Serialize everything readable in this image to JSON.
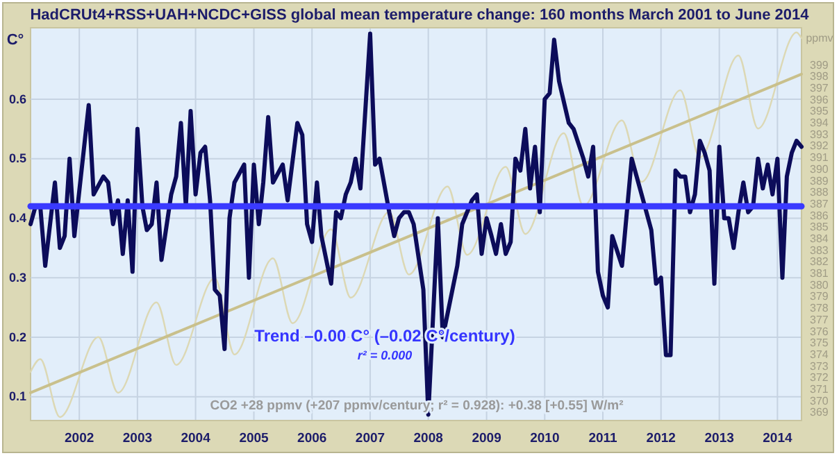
{
  "chart_data": {
    "type": "line",
    "title": "HadCRUt4+RSS+UAH+NCDC+GISS global mean temperature change: 160 months March 2001 to June 2014",
    "ylabel": "C°",
    "y2label": "ppmv",
    "annotations": [
      "Trend –0.00 C° (–0.02 C°/century)",
      "r² = 0.000",
      "CO2 +28 ppmv (+207 ppmv/century; r² = 0.928): +0.38 [+0.55] W/m²"
    ],
    "xlim": [
      "2001-03",
      "2014-06"
    ],
    "xticks": [
      "2002",
      "2003",
      "2004",
      "2005",
      "2006",
      "2007",
      "2008",
      "2009",
      "2010",
      "2011",
      "2012",
      "2013",
      "2014"
    ],
    "ylim": [
      0.06,
      0.72
    ],
    "yticks": [
      0.1,
      0.2,
      0.3,
      0.4,
      0.5,
      0.6
    ],
    "y2lim": [
      368.3,
      402.2
    ],
    "y2ticks": [
      369,
      370,
      371,
      372,
      373,
      374,
      375,
      376,
      377,
      378,
      379,
      380,
      381,
      382,
      383,
      384,
      385,
      386,
      387,
      388,
      389,
      390,
      391,
      392,
      393,
      394,
      395,
      396,
      397,
      398,
      399
    ],
    "grid": true,
    "series": [
      {
        "type": "line",
        "axis": "y2",
        "color": "#dcd8b4",
        "x": [
          "2001-03",
          "2001-05",
          "2001-09",
          "2002-05",
          "2002-09",
          "2003-05",
          "2003-09",
          "2004-05",
          "2004-09",
          "2005-05",
          "2005-09",
          "2006-05",
          "2006-09",
          "2007-05",
          "2007-09",
          "2008-05",
          "2008-09",
          "2009-05",
          "2009-09",
          "2010-05",
          "2010-09",
          "2011-05",
          "2011-09",
          "2012-05",
          "2012-09",
          "2013-05",
          "2013-09",
          "2014-05",
          "2014-06"
        ],
        "values": [
          372.5,
          373.6,
          368.6,
          375.5,
          370.7,
          378.5,
          373.1,
          380.6,
          374.0,
          382.3,
          376.7,
          384.8,
          378.9,
          386.3,
          380.9,
          388.5,
          382.6,
          390.2,
          384.4,
          393.1,
          386.8,
          394.2,
          388.9,
          396.8,
          391.0,
          399.8,
          393.5,
          401.8,
          401.3
        ]
      },
      {
        "type": "line",
        "axis": "y2",
        "color": "#c9c08c",
        "x": [
          "2001-03",
          "2014-06"
        ],
        "values": [
          370.7,
          398.2
        ]
      },
      {
        "type": "line",
        "color": "#0c0c5a",
        "x": [
          "2001-03",
          "2001-04",
          "2001-05",
          "2001-06",
          "2001-08",
          "2001-09",
          "2001-10",
          "2001-11",
          "2001-12",
          "2002-03",
          "2002-04",
          "2002-06",
          "2002-07",
          "2002-08",
          "2002-09",
          "2002-10",
          "2002-11",
          "2002-12",
          "2003-01",
          "2003-02",
          "2003-03",
          "2003-04",
          "2003-05",
          "2003-06",
          "2003-08",
          "2003-09",
          "2003-10",
          "2003-11",
          "2003-12",
          "2004-01",
          "2004-02",
          "2004-03",
          "2004-04",
          "2004-05",
          "2004-06",
          "2004-07",
          "2004-08",
          "2004-09",
          "2004-11",
          "2004-12",
          "2005-01",
          "2005-02",
          "2005-03",
          "2005-04",
          "2005-05",
          "2005-07",
          "2005-08",
          "2005-10",
          "2005-11",
          "2005-12",
          "2006-01",
          "2006-02",
          "2006-03",
          "2006-05",
          "2006-06",
          "2006-07",
          "2006-08",
          "2006-09",
          "2006-10",
          "2006-11",
          "2007-01",
          "2007-02",
          "2007-03",
          "2007-05",
          "2007-06",
          "2007-07",
          "2007-08",
          "2007-09",
          "2007-10",
          "2007-12",
          "2008-01",
          "2008-03",
          "2008-04",
          "2008-07",
          "2008-08",
          "2008-10",
          "2008-11",
          "2008-12",
          "2009-01",
          "2009-02",
          "2009-03",
          "2009-04",
          "2009-05",
          "2009-06",
          "2009-07",
          "2009-08",
          "2009-09",
          "2009-10",
          "2009-11",
          "2009-12",
          "2010-01",
          "2010-02",
          "2010-03",
          "2010-04",
          "2010-06",
          "2010-07",
          "2010-09",
          "2010-10",
          "2010-11",
          "2010-12",
          "2011-01",
          "2011-02",
          "2011-03",
          "2011-05",
          "2011-07",
          "2011-09",
          "2011-11",
          "2011-12",
          "2012-01",
          "2012-02",
          "2012-03",
          "2012-04",
          "2012-05",
          "2012-06",
          "2012-07",
          "2012-08",
          "2012-09",
          "2012-10",
          "2012-11",
          "2012-12",
          "2013-01",
          "2013-02",
          "2013-03",
          "2013-04",
          "2013-05",
          "2013-06",
          "2013-07",
          "2013-08",
          "2013-09",
          "2013-10",
          "2013-11",
          "2013-12",
          "2014-01",
          "2014-02",
          "2014-03",
          "2014-04",
          "2014-05",
          "2014-06"
        ],
        "values": [
          0.39,
          0.42,
          0.42,
          0.32,
          0.46,
          0.35,
          0.37,
          0.5,
          0.37,
          0.59,
          0.44,
          0.47,
          0.46,
          0.39,
          0.43,
          0.34,
          0.43,
          0.31,
          0.55,
          0.42,
          0.38,
          0.39,
          0.46,
          0.33,
          0.44,
          0.47,
          0.56,
          0.42,
          0.58,
          0.44,
          0.51,
          0.52,
          0.43,
          0.28,
          0.27,
          0.18,
          0.4,
          0.46,
          0.49,
          0.3,
          0.49,
          0.39,
          0.46,
          0.57,
          0.46,
          0.49,
          0.43,
          0.56,
          0.54,
          0.39,
          0.36,
          0.46,
          0.37,
          0.29,
          0.41,
          0.4,
          0.44,
          0.46,
          0.5,
          0.45,
          0.71,
          0.49,
          0.5,
          0.41,
          0.37,
          0.4,
          0.41,
          0.41,
          0.39,
          0.28,
          0.07,
          0.4,
          0.2,
          0.32,
          0.39,
          0.43,
          0.44,
          0.34,
          0.4,
          0.37,
          0.34,
          0.39,
          0.34,
          0.36,
          0.5,
          0.48,
          0.55,
          0.45,
          0.52,
          0.41,
          0.6,
          0.61,
          0.7,
          0.63,
          0.56,
          0.55,
          0.5,
          0.47,
          0.52,
          0.31,
          0.27,
          0.25,
          0.37,
          0.32,
          0.5,
          0.44,
          0.38,
          0.29,
          0.3,
          0.17,
          0.17,
          0.48,
          0.47,
          0.47,
          0.41,
          0.44,
          0.53,
          0.51,
          0.48,
          0.29,
          0.52,
          0.4,
          0.4,
          0.35,
          0.41,
          0.46,
          0.41,
          0.42,
          0.5,
          0.45,
          0.49,
          0.44,
          0.5,
          0.3,
          0.47,
          0.51,
          0.53,
          0.52
        ]
      },
      {
        "type": "line",
        "color": "#3a3aff",
        "x": [
          "2001-03",
          "2014-06"
        ],
        "values": [
          0.42,
          0.42
        ]
      }
    ]
  }
}
